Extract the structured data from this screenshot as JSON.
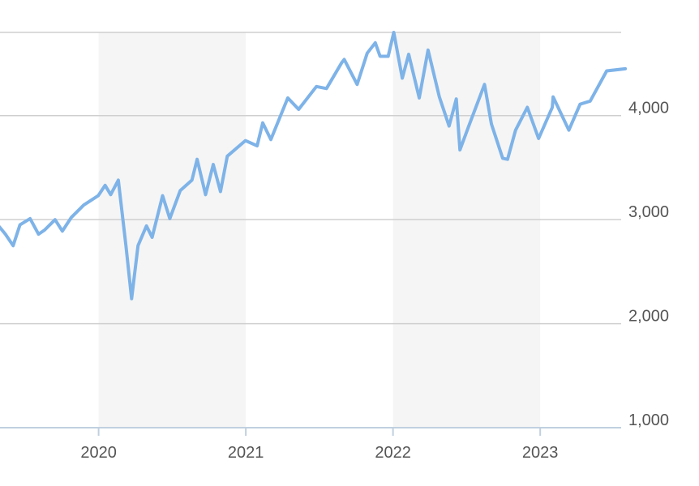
{
  "chart_data": {
    "type": "line",
    "title": "",
    "xlabel": "",
    "ylabel": "",
    "x_ticks": [
      "2020",
      "2021",
      "2022",
      "2023"
    ],
    "y_ticks": [
      "1,000",
      "2,000",
      "3,000",
      "4,000"
    ],
    "ylim": [
      1000,
      4800
    ],
    "xlim": [
      "2019-04-30",
      "2023-07-31"
    ],
    "grid": true,
    "legend": "none",
    "shaded_years": [
      "2020",
      "2022"
    ],
    "colors": {
      "line": "#7eb3e8",
      "shade": "#f5f5f5",
      "grid": "#cfcfcf",
      "axis": "#c0d0e0"
    },
    "series": [
      {
        "name": "",
        "points": [
          [
            "2019-04-30",
            2930
          ],
          [
            "2019-05-15",
            2860
          ],
          [
            "2019-06-03",
            2750
          ],
          [
            "2019-06-20",
            2950
          ],
          [
            "2019-07-15",
            3010
          ],
          [
            "2019-08-05",
            2860
          ],
          [
            "2019-08-20",
            2900
          ],
          [
            "2019-09-15",
            3000
          ],
          [
            "2019-10-03",
            2890
          ],
          [
            "2019-10-25",
            3020
          ],
          [
            "2019-11-25",
            3140
          ],
          [
            "2019-12-31",
            3230
          ],
          [
            "2020-01-17",
            3330
          ],
          [
            "2020-01-31",
            3240
          ],
          [
            "2020-02-19",
            3380
          ],
          [
            "2020-03-09",
            2750
          ],
          [
            "2020-03-23",
            2240
          ],
          [
            "2020-04-08",
            2750
          ],
          [
            "2020-04-29",
            2940
          ],
          [
            "2020-05-13",
            2830
          ],
          [
            "2020-06-08",
            3230
          ],
          [
            "2020-06-26",
            3010
          ],
          [
            "2020-07-22",
            3280
          ],
          [
            "2020-08-20",
            3380
          ],
          [
            "2020-09-02",
            3580
          ],
          [
            "2020-09-23",
            3240
          ],
          [
            "2020-10-12",
            3530
          ],
          [
            "2020-10-30",
            3270
          ],
          [
            "2020-11-16",
            3610
          ],
          [
            "2020-12-31",
            3760
          ],
          [
            "2021-01-29",
            3710
          ],
          [
            "2021-02-12",
            3930
          ],
          [
            "2021-03-04",
            3770
          ],
          [
            "2021-04-15",
            4170
          ],
          [
            "2021-05-12",
            4060
          ],
          [
            "2021-06-25",
            4280
          ],
          [
            "2021-07-20",
            4260
          ],
          [
            "2021-08-27",
            4510
          ],
          [
            "2021-09-02",
            4540
          ],
          [
            "2021-10-04",
            4300
          ],
          [
            "2021-10-29",
            4600
          ],
          [
            "2021-11-18",
            4700
          ],
          [
            "2021-11-30",
            4570
          ],
          [
            "2021-12-20",
            4570
          ],
          [
            "2022-01-03",
            4800
          ],
          [
            "2022-01-24",
            4360
          ],
          [
            "2022-02-09",
            4590
          ],
          [
            "2022-03-07",
            4170
          ],
          [
            "2022-03-29",
            4630
          ],
          [
            "2022-04-26",
            4180
          ],
          [
            "2022-05-20",
            3900
          ],
          [
            "2022-06-07",
            4160
          ],
          [
            "2022-06-16",
            3670
          ],
          [
            "2022-07-08",
            3900
          ],
          [
            "2022-08-16",
            4300
          ],
          [
            "2022-09-02",
            3920
          ],
          [
            "2022-09-30",
            3590
          ],
          [
            "2022-10-12",
            3580
          ],
          [
            "2022-11-01",
            3860
          ],
          [
            "2022-11-30",
            4080
          ],
          [
            "2022-12-28",
            3780
          ],
          [
            "2023-01-31",
            4080
          ],
          [
            "2023-02-02",
            4180
          ],
          [
            "2023-03-13",
            3860
          ],
          [
            "2023-04-10",
            4110
          ],
          [
            "2023-05-05",
            4140
          ],
          [
            "2023-06-15",
            4430
          ],
          [
            "2023-07-31",
            4450
          ]
        ]
      }
    ]
  }
}
